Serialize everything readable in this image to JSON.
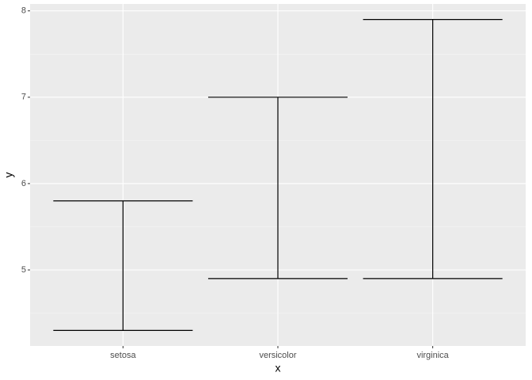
{
  "chart_data": {
    "type": "errorbar",
    "categories": [
      "setosa",
      "versicolor",
      "virginica"
    ],
    "ymin": [
      4.3,
      4.9,
      4.9
    ],
    "ymax": [
      5.8,
      7.0,
      7.9
    ],
    "color": "#000000",
    "xlabel": "x",
    "ylabel": "y",
    "ylim": [
      4.12,
      8.08
    ],
    "yticks": [
      5,
      6,
      7,
      8
    ],
    "grid": true
  }
}
